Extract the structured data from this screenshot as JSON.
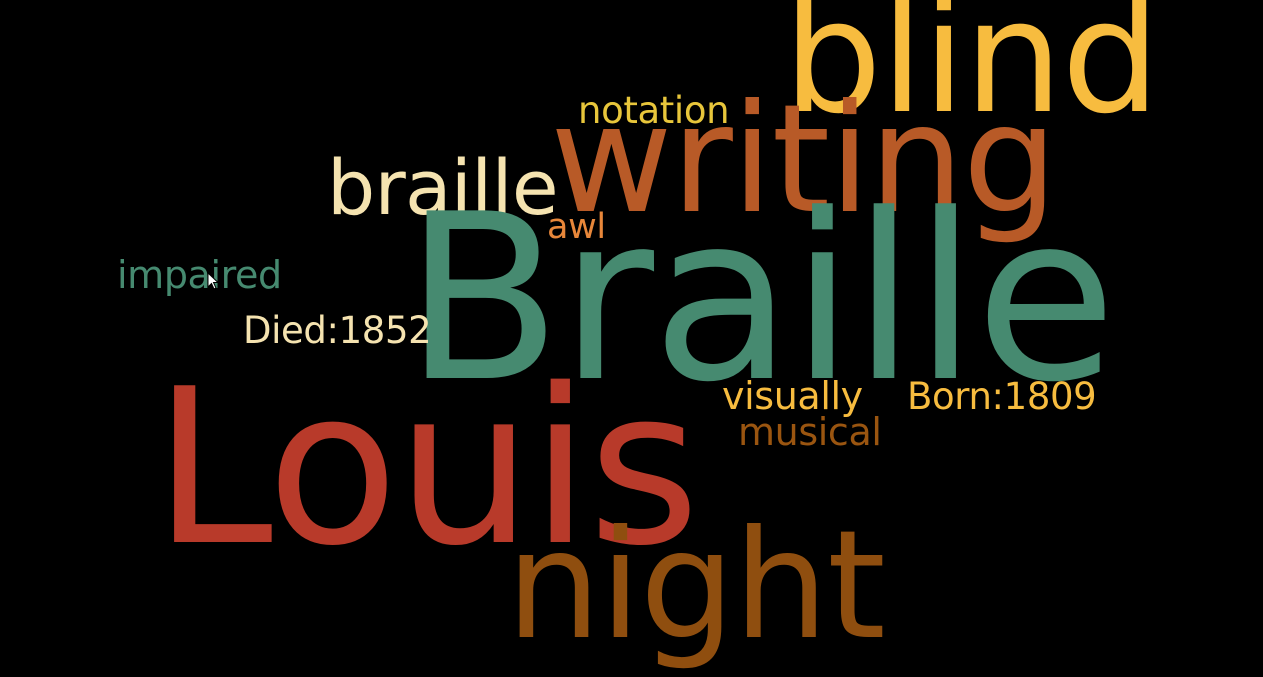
{
  "background_color": "#000000",
  "words": [
    {
      "id": "word-blind",
      "text": "blind",
      "color": "#F7BC3F"
    },
    {
      "id": "word-notation",
      "text": "notation",
      "color": "#E8C63B"
    },
    {
      "id": "word-writing",
      "text": "writing",
      "color": "#B85A27"
    },
    {
      "id": "word-braille-lower",
      "text": "braille",
      "color": "#F5E3B0"
    },
    {
      "id": "word-awl",
      "text": "awl",
      "color": "#E8873A"
    },
    {
      "id": "word-braille-upper",
      "text": "Braille",
      "color": "#468A70"
    },
    {
      "id": "word-impaired",
      "text": "impaired",
      "color": "#468A70"
    },
    {
      "id": "word-died",
      "text": "Died:1852",
      "color": "#F5E3B0"
    },
    {
      "id": "word-visually",
      "text": "visually",
      "color": "#F7BC3F"
    },
    {
      "id": "word-born",
      "text": "Born:1809",
      "color": "#F7BC3F"
    },
    {
      "id": "word-musical",
      "text": "musical",
      "color": "#9A5510"
    },
    {
      "id": "word-louis",
      "text": "Louis",
      "color": "#B83A2A"
    },
    {
      "id": "word-night",
      "text": "night",
      "color": "#8F4E0F"
    }
  ]
}
